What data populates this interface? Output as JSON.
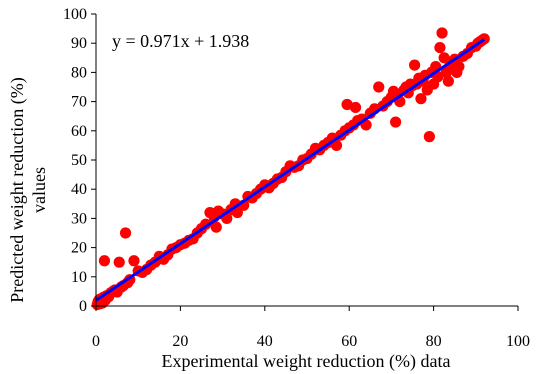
{
  "chart_data": {
    "type": "scatter",
    "title": "",
    "xlabel": "Experimental weight reduction (%) data",
    "ylabel": [
      "Predicted weight reduction (%)",
      "values"
    ],
    "xlim": [
      0,
      100
    ],
    "ylim": [
      0,
      100
    ],
    "xticks": [
      "0",
      "20",
      "40",
      "60",
      "80",
      "100"
    ],
    "yticks": [
      "0",
      "10",
      "20",
      "30",
      "40",
      "50",
      "60",
      "70",
      "80",
      "90",
      "100"
    ],
    "grid": false,
    "legend": "none",
    "annotation": "y = 0.971x + 1.938",
    "colors": {
      "points": "#ff0000",
      "trendline": "#0000ff",
      "axis": "#000000"
    },
    "trendline": {
      "slope": 0.971,
      "intercept": 1.938,
      "x_range": [
        0,
        92
      ]
    },
    "points": [
      [
        0.3,
        0.5
      ],
      [
        0.5,
        1.5
      ],
      [
        0.8,
        2.2
      ],
      [
        1.0,
        0.8
      ],
      [
        1.2,
        2.5
      ],
      [
        1.5,
        1.0
      ],
      [
        1.8,
        3.0
      ],
      [
        2.0,
        15.5
      ],
      [
        2.2,
        2.0
      ],
      [
        2.5,
        3.5
      ],
      [
        3.0,
        3.2
      ],
      [
        3.5,
        4.5
      ],
      [
        4.0,
        5.0
      ],
      [
        4.5,
        5.5
      ],
      [
        5.0,
        4.8
      ],
      [
        5.5,
        15.0
      ],
      [
        6.0,
        6.5
      ],
      [
        6.5,
        7.0
      ],
      [
        7.0,
        25.0
      ],
      [
        7.5,
        8.0
      ],
      [
        8.0,
        9.0
      ],
      [
        9.0,
        15.5
      ],
      [
        10.0,
        12.0
      ],
      [
        11.0,
        11.5
      ],
      [
        12.0,
        12.5
      ],
      [
        13.0,
        14.0
      ],
      [
        14.0,
        15.0
      ],
      [
        15.0,
        17.0
      ],
      [
        16.0,
        16.0
      ],
      [
        17.0,
        17.5
      ],
      [
        18.0,
        19.5
      ],
      [
        19.0,
        20.0
      ],
      [
        20.0,
        21.0
      ],
      [
        21.0,
        21.5
      ],
      [
        22.0,
        22.5
      ],
      [
        23.0,
        23.0
      ],
      [
        24.0,
        25.0
      ],
      [
        25.0,
        26.5
      ],
      [
        26.0,
        28.0
      ],
      [
        27.0,
        32.0
      ],
      [
        28.0,
        30.5
      ],
      [
        28.5,
        27.0
      ],
      [
        29.0,
        32.5
      ],
      [
        30.0,
        31.5
      ],
      [
        31.0,
        30.0
      ],
      [
        32.0,
        33.0
      ],
      [
        33.0,
        35.0
      ],
      [
        33.5,
        32.0
      ],
      [
        35.0,
        34.5
      ],
      [
        36.0,
        37.5
      ],
      [
        37.0,
        37.0
      ],
      [
        38.0,
        38.5
      ],
      [
        39.0,
        40.0
      ],
      [
        40.0,
        41.5
      ],
      [
        41.0,
        40.5
      ],
      [
        42.0,
        42.0
      ],
      [
        43.0,
        43.5
      ],
      [
        44.0,
        44.0
      ],
      [
        45.0,
        46.0
      ],
      [
        46.0,
        48.0
      ],
      [
        47.0,
        47.5
      ],
      [
        48.0,
        48.0
      ],
      [
        49.0,
        50.0
      ],
      [
        50.0,
        50.5
      ],
      [
        51.0,
        52.0
      ],
      [
        52.0,
        54.0
      ],
      [
        53.0,
        53.5
      ],
      [
        54.0,
        55.0
      ],
      [
        55.0,
        56.0
      ],
      [
        56.0,
        57.5
      ],
      [
        57.0,
        55.0
      ],
      [
        58.0,
        58.5
      ],
      [
        59.0,
        60.0
      ],
      [
        59.5,
        69.0
      ],
      [
        60.0,
        61.0
      ],
      [
        61.0,
        62.0
      ],
      [
        61.5,
        68.0
      ],
      [
        62.0,
        63.5
      ],
      [
        63.0,
        64.0
      ],
      [
        64.0,
        62.0
      ],
      [
        65.0,
        66.0
      ],
      [
        66.0,
        67.5
      ],
      [
        67.0,
        75.0
      ],
      [
        68.0,
        68.5
      ],
      [
        69.0,
        70.0
      ],
      [
        70.0,
        71.5
      ],
      [
        70.5,
        73.5
      ],
      [
        71.0,
        63.0
      ],
      [
        71.5,
        72.5
      ],
      [
        72.0,
        70.0
      ],
      [
        73.0,
        74.0
      ],
      [
        73.5,
        75.0
      ],
      [
        74.0,
        73.0
      ],
      [
        74.5,
        76.0
      ],
      [
        75.0,
        75.5
      ],
      [
        75.5,
        82.5
      ],
      [
        76.0,
        76.0
      ],
      [
        76.5,
        78.0
      ],
      [
        77.0,
        71.0
      ],
      [
        77.5,
        77.0
      ],
      [
        78.0,
        79.0
      ],
      [
        78.5,
        74.0
      ],
      [
        79.0,
        58.0
      ],
      [
        79.5,
        80.0
      ],
      [
        80.0,
        76.0
      ],
      [
        80.5,
        82.0
      ],
      [
        81.0,
        78.5
      ],
      [
        81.5,
        88.5
      ],
      [
        82.0,
        93.5
      ],
      [
        82.5,
        85.0
      ],
      [
        83.0,
        80.0
      ],
      [
        83.5,
        77.0
      ],
      [
        84.0,
        83.0
      ],
      [
        84.5,
        81.5
      ],
      [
        85.0,
        84.5
      ],
      [
        85.5,
        80.0
      ],
      [
        86.0,
        82.0
      ],
      [
        87.0,
        85.5
      ],
      [
        88.0,
        86.5
      ],
      [
        89.0,
        88.5
      ],
      [
        90.0,
        89.0
      ],
      [
        90.5,
        90.0
      ],
      [
        91.0,
        90.5
      ],
      [
        91.5,
        91.0
      ],
      [
        92.0,
        91.5
      ]
    ]
  }
}
